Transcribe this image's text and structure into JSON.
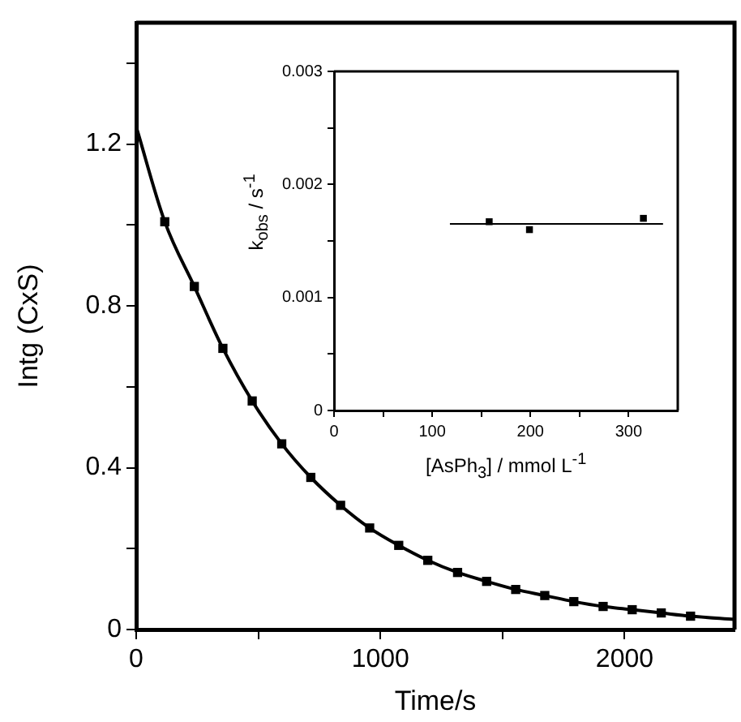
{
  "chart_data": [
    {
      "type": "scatter",
      "xlabel": "Time/s",
      "ylabel": "Intg (CxS)",
      "xlim": [
        0,
        2450
      ],
      "xticks": [
        0,
        {
          "value": 500,
          "label": null
        },
        1000,
        {
          "value": 1500,
          "label": null
        },
        2000
      ],
      "ylim": [
        0,
        1.5
      ],
      "yticks": [
        0,
        {
          "value": 0.2,
          "label": null
        },
        0.4,
        {
          "value": 0.6,
          "label": null
        },
        0.8,
        {
          "value": 1.0,
          "label": null
        },
        1.2,
        {
          "value": 1.4,
          "label": null
        }
      ],
      "marker": "square",
      "legend": false,
      "series": [
        {
          "type": "scatter",
          "color": "#000000",
          "x": [
            117,
            238,
            355,
            475,
            596,
            715,
            837,
            956,
            1075,
            1194,
            1316,
            1435,
            1554,
            1673,
            1792,
            1912,
            2031,
            2150,
            2270
          ],
          "values": [
            1.008,
            0.848,
            0.695,
            0.565,
            0.459,
            0.376,
            0.307,
            0.251,
            0.208,
            0.171,
            0.141,
            0.119,
            0.099,
            0.084,
            0.069,
            0.057,
            0.049,
            0.041,
            0.033
          ]
        },
        {
          "type": "line",
          "color": "#000000",
          "marker": "none",
          "x": [
            0,
            117,
            238,
            355,
            475,
            596,
            715,
            837,
            956,
            1075,
            1194,
            1316,
            1435,
            1554,
            1673,
            1792,
            1912,
            2031,
            2150,
            2270,
            2450
          ],
          "values": [
            1.243,
            1.008,
            0.848,
            0.695,
            0.565,
            0.459,
            0.376,
            0.307,
            0.251,
            0.208,
            0.171,
            0.141,
            0.119,
            0.099,
            0.084,
            0.069,
            0.057,
            0.049,
            0.041,
            0.033,
            0.025
          ]
        }
      ]
    },
    {
      "type": "scatter",
      "xlabel": "[AsPh$_{3}$] / mmol L$^{-1}$",
      "ylabel": "k$_{obs}$ / s$^{-1}$",
      "xlim": [
        0,
        350
      ],
      "xticks": [
        0,
        {
          "value": 50,
          "label": null
        },
        100,
        {
          "value": 150,
          "label": null
        },
        200,
        {
          "value": 250,
          "label": null
        },
        300
      ],
      "ylim": [
        0,
        0.003
      ],
      "yticks": [
        0,
        {
          "value": 0.0005,
          "label": null
        },
        0.001,
        {
          "value": 0.0015,
          "label": null
        },
        0.002,
        {
          "value": 0.0025,
          "label": null
        },
        0.003
      ],
      "marker": "square",
      "legend": false,
      "series": [
        {
          "type": "scatter",
          "color": "#000000",
          "x": [
            158,
            199,
            315
          ],
          "values": [
            0.00167,
            0.0016,
            0.0017
          ]
        },
        {
          "type": "line",
          "color": "#000000",
          "marker": "none",
          "x": [
            118,
            335
          ],
          "values": [
            0.00165,
            0.00165
          ]
        }
      ]
    }
  ]
}
